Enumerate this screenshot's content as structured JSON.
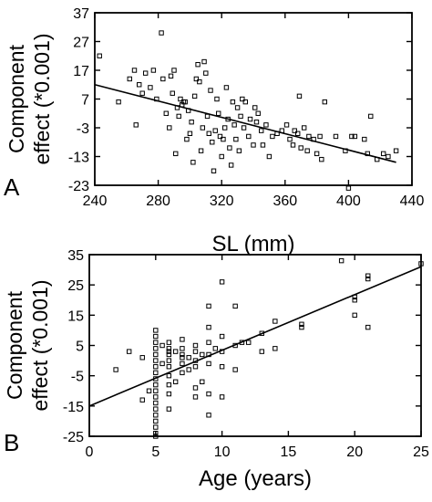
{
  "chart_data": [
    {
      "panel_label": "A",
      "type": "scatter",
      "xlabel": "SL (mm)",
      "ylabel": [
        "Component",
        "effect (*0.001)"
      ],
      "xlim": [
        240,
        440
      ],
      "ylim": [
        -23,
        37
      ],
      "xticks": [
        240,
        280,
        320,
        360,
        400,
        440
      ],
      "yticks": [
        37,
        27,
        17,
        7,
        -3,
        -13,
        -23
      ],
      "regression_line": [
        [
          240,
          12
        ],
        [
          430,
          -15
        ]
      ],
      "points": [
        [
          243,
          22
        ],
        [
          255,
          6
        ],
        [
          262,
          14
        ],
        [
          265,
          17
        ],
        [
          266,
          -2
        ],
        [
          268,
          12
        ],
        [
          270,
          9
        ],
        [
          272,
          16
        ],
        [
          275,
          11
        ],
        [
          277,
          17
        ],
        [
          279,
          7
        ],
        [
          282,
          30
        ],
        [
          283,
          14
        ],
        [
          285,
          2
        ],
        [
          287,
          -3
        ],
        [
          288,
          15
        ],
        [
          289,
          9
        ],
        [
          290,
          17
        ],
        [
          291,
          -12
        ],
        [
          292,
          4
        ],
        [
          293,
          1
        ],
        [
          294,
          7
        ],
        [
          295,
          5
        ],
        [
          296,
          6
        ],
        [
          297,
          6
        ],
        [
          298,
          -7
        ],
        [
          299,
          3
        ],
        [
          300,
          -5
        ],
        [
          301,
          -1
        ],
        [
          302,
          -15
        ],
        [
          303,
          8
        ],
        [
          304,
          14
        ],
        [
          305,
          19
        ],
        [
          306,
          13
        ],
        [
          307,
          -11
        ],
        [
          308,
          -3
        ],
        [
          309,
          20
        ],
        [
          310,
          16
        ],
        [
          311,
          1
        ],
        [
          312,
          -5
        ],
        [
          313,
          10
        ],
        [
          314,
          -8
        ],
        [
          315,
          -18
        ],
        [
          316,
          -4
        ],
        [
          317,
          7
        ],
        [
          318,
          2
        ],
        [
          319,
          -6
        ],
        [
          320,
          -13
        ],
        [
          321,
          -7
        ],
        [
          322,
          -3
        ],
        [
          323,
          11
        ],
        [
          324,
          0
        ],
        [
          325,
          -10
        ],
        [
          326,
          -16
        ],
        [
          327,
          6
        ],
        [
          328,
          -2
        ],
        [
          329,
          -7
        ],
        [
          330,
          4
        ],
        [
          331,
          -11
        ],
        [
          332,
          1
        ],
        [
          333,
          7
        ],
        [
          334,
          -3
        ],
        [
          335,
          6
        ],
        [
          337,
          -6
        ],
        [
          338,
          0
        ],
        [
          340,
          -9
        ],
        [
          341,
          4
        ],
        [
          342,
          -1
        ],
        [
          343,
          2
        ],
        [
          345,
          -4
        ],
        [
          346,
          -9
        ],
        [
          348,
          -2
        ],
        [
          350,
          -13
        ],
        [
          352,
          -6
        ],
        [
          355,
          -5
        ],
        [
          358,
          -4
        ],
        [
          361,
          -2
        ],
        [
          363,
          -7
        ],
        [
          365,
          -9
        ],
        [
          366,
          -4
        ],
        [
          368,
          -5
        ],
        [
          369,
          8
        ],
        [
          370,
          -10
        ],
        [
          372,
          -3
        ],
        [
          374,
          -11
        ],
        [
          375,
          -6
        ],
        [
          378,
          -7
        ],
        [
          380,
          -12
        ],
        [
          382,
          -6
        ],
        [
          383,
          -14
        ],
        [
          385,
          6
        ],
        [
          392,
          -6
        ],
        [
          398,
          -11
        ],
        [
          400,
          -24
        ],
        [
          402,
          -6
        ],
        [
          404,
          -6
        ],
        [
          410,
          -7
        ],
        [
          412,
          -12
        ],
        [
          414,
          1
        ],
        [
          418,
          -14
        ],
        [
          422,
          -12
        ],
        [
          425,
          -13
        ],
        [
          430,
          -11
        ]
      ]
    },
    {
      "panel_label": "B",
      "type": "scatter",
      "xlabel": "Age (years)",
      "ylabel": [
        "Component",
        "effect (*0.001)"
      ],
      "xlim": [
        0,
        25
      ],
      "ylim": [
        -25,
        35
      ],
      "xticks": [
        0,
        5,
        10,
        15,
        20,
        25
      ],
      "yticks": [
        35,
        25,
        15,
        5,
        -5,
        -15,
        -25
      ],
      "regression_line": [
        [
          0,
          -15
        ],
        [
          25,
          31
        ]
      ],
      "points": [
        [
          2,
          -3
        ],
        [
          3,
          3
        ],
        [
          4,
          -13
        ],
        [
          4,
          1
        ],
        [
          4.5,
          -10
        ],
        [
          5,
          -25
        ],
        [
          5,
          -24
        ],
        [
          5,
          -22
        ],
        [
          5,
          -20
        ],
        [
          5,
          -18
        ],
        [
          5,
          -16
        ],
        [
          5,
          -14
        ],
        [
          5,
          -12
        ],
        [
          5,
          -10
        ],
        [
          5,
          -8
        ],
        [
          5,
          -6
        ],
        [
          5,
          -4
        ],
        [
          5,
          -2
        ],
        [
          5,
          0
        ],
        [
          5,
          2
        ],
        [
          5,
          4
        ],
        [
          5,
          6
        ],
        [
          5,
          8
        ],
        [
          5,
          10
        ],
        [
          5.5,
          -1
        ],
        [
          5.5,
          5
        ],
        [
          6,
          -16
        ],
        [
          6,
          -11
        ],
        [
          6,
          -8
        ],
        [
          6,
          -5
        ],
        [
          6,
          -2
        ],
        [
          6,
          0
        ],
        [
          6,
          2
        ],
        [
          6,
          3
        ],
        [
          6,
          4
        ],
        [
          6,
          6
        ],
        [
          6.5,
          -7
        ],
        [
          6.5,
          3
        ],
        [
          7,
          -4
        ],
        [
          7,
          -1
        ],
        [
          7,
          1
        ],
        [
          7,
          2
        ],
        [
          7,
          4
        ],
        [
          7,
          7
        ],
        [
          7.5,
          -3
        ],
        [
          7.5,
          1
        ],
        [
          8,
          -2
        ],
        [
          8,
          -9
        ],
        [
          8,
          0
        ],
        [
          8,
          3
        ],
        [
          8,
          5
        ],
        [
          8,
          -12
        ],
        [
          8.5,
          2
        ],
        [
          8.5,
          -7
        ],
        [
          9,
          -18
        ],
        [
          9,
          -11
        ],
        [
          9,
          -1
        ],
        [
          9,
          2
        ],
        [
          9,
          6
        ],
        [
          9,
          11
        ],
        [
          9,
          18
        ],
        [
          9.5,
          4
        ],
        [
          10,
          -12
        ],
        [
          10,
          -2
        ],
        [
          10,
          3
        ],
        [
          10,
          8
        ],
        [
          10,
          26
        ],
        [
          11,
          -3
        ],
        [
          11,
          5
        ],
        [
          11,
          18
        ],
        [
          11.5,
          6
        ],
        [
          12,
          6
        ],
        [
          13,
          9
        ],
        [
          13,
          3
        ],
        [
          14,
          13
        ],
        [
          14,
          4
        ],
        [
          16,
          12
        ],
        [
          16,
          11
        ],
        [
          19,
          33
        ],
        [
          20,
          15
        ],
        [
          20,
          20
        ],
        [
          20,
          21
        ],
        [
          21,
          11
        ],
        [
          21,
          28
        ],
        [
          21,
          27
        ],
        [
          25,
          32
        ]
      ]
    }
  ]
}
